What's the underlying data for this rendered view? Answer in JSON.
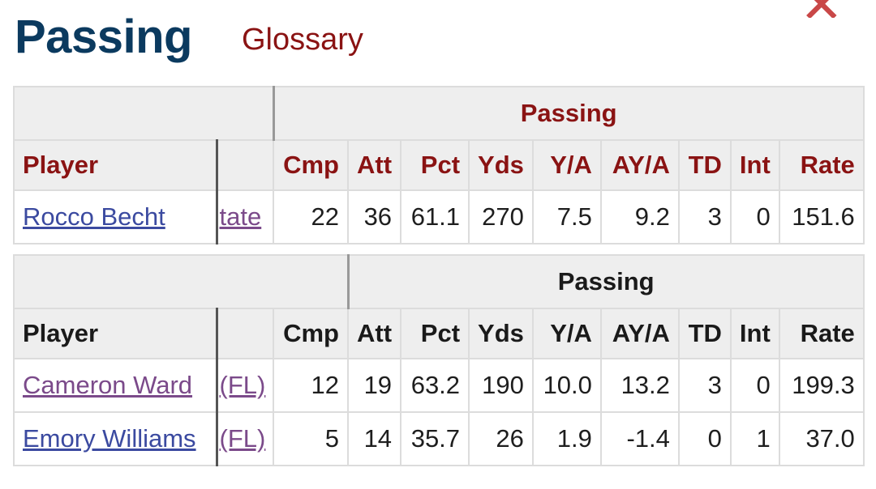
{
  "header": {
    "title": "Passing",
    "glossary_label": "Glossary",
    "close_glyph": "✕"
  },
  "table1": {
    "group_label": "Passing",
    "columns": [
      "Player",
      "",
      "Cmp",
      "Att",
      "Pct",
      "Yds",
      "Y/A",
      "AY/A",
      "TD",
      "Int",
      "Rate"
    ],
    "rows": [
      {
        "player": "Rocco Becht",
        "school": "tate",
        "cmp": "22",
        "att": "36",
        "pct": "61.1",
        "yds": "270",
        "ya": "7.5",
        "aya": "9.2",
        "td": "3",
        "int": "0",
        "rate": "151.6"
      }
    ]
  },
  "table2": {
    "group_label": "Passing",
    "columns": [
      "Player",
      "",
      "Cmp",
      "Att",
      "Pct",
      "Yds",
      "Y/A",
      "AY/A",
      "TD",
      "Int",
      "Rate"
    ],
    "rows": [
      {
        "player": "Cameron Ward",
        "school": "(FL)",
        "cmp": "12",
        "att": "19",
        "pct": "63.2",
        "yds": "190",
        "ya": "10.0",
        "aya": "13.2",
        "td": "3",
        "int": "0",
        "rate": "199.3"
      },
      {
        "player": "Emory Williams",
        "school": "(FL)",
        "cmp": "5",
        "att": "14",
        "pct": "35.7",
        "yds": "26",
        "ya": "1.9",
        "aya": "-1.4",
        "td": "0",
        "int": "1",
        "rate": "37.0"
      }
    ]
  },
  "colors": {
    "title": "#0b3a5f",
    "accent_red": "#8a1313",
    "link_blue": "#3b4aa0",
    "link_visited": "#7b4a8a",
    "close_icon": "#c94848"
  }
}
